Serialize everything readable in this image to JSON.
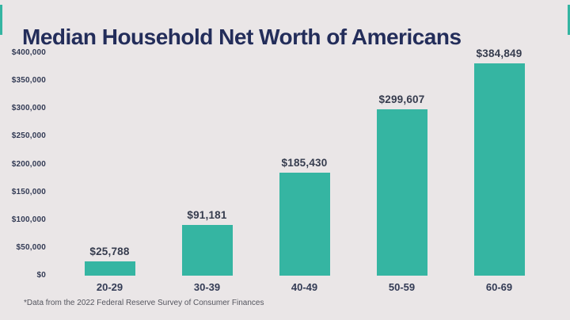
{
  "page": {
    "title": "Median Household Net Worth of Americans",
    "footnote": "*Data from the 2022 Federal Reserve Survey of Consumer Finances"
  },
  "colors": {
    "background": "#eae6e7",
    "bar": "#35b5a2",
    "title_text": "#232d5a",
    "axis_text": "#333b55",
    "value_text": "#363c4e",
    "footnote_text": "#55565f"
  },
  "chart_data": {
    "type": "bar",
    "title": "Median Household Net Worth of Americans",
    "categories": [
      "20-29",
      "30-39",
      "40-49",
      "50-59",
      "60-69"
    ],
    "values": [
      25788,
      91181,
      185430,
      299607,
      384849
    ],
    "value_labels": [
      "$25,788",
      "$91,181",
      "$185,430",
      "$299,607",
      "$384,849"
    ],
    "y_ticks": [
      "$400,000",
      "$350,000",
      "$300,000",
      "$250,000",
      "$200,000",
      "$150,000",
      "$100,000",
      "$50,000",
      "$0"
    ],
    "ylim": [
      0,
      400000
    ],
    "xlabel": "",
    "ylabel": "",
    "grid": "off",
    "legend": "none",
    "annotation": "*Data from the 2022 Federal Reserve Survey of Consumer Finances"
  }
}
